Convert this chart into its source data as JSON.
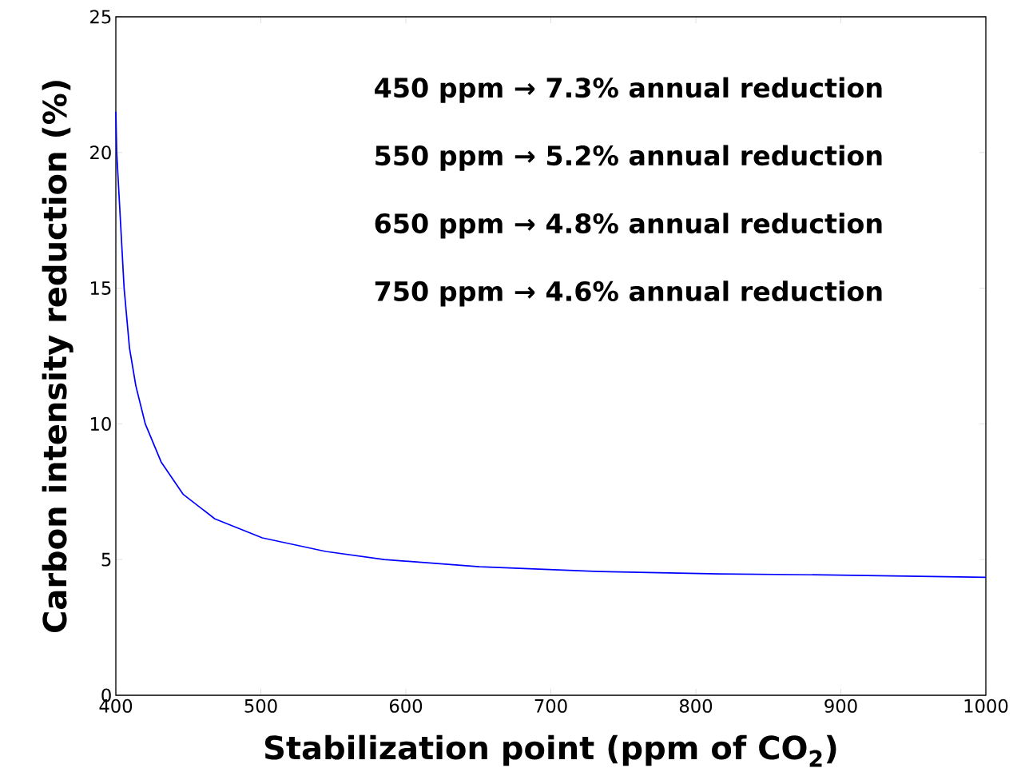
{
  "chart_data": {
    "type": "line",
    "xlabel": "Stabilization point (ppm of CO$_{2}$)",
    "ylabel": "Carbon intensity reduction (%)",
    "annotations": [
      "450 ppm → 7.3% annual reduction",
      "550 ppm → 5.2% annual reduction",
      "650 ppm → 4.8% annual reduction",
      "750 ppm → 4.6% annual reduction"
    ],
    "series": [
      {
        "color": "#0000ff",
        "x": [
          400,
          400.6,
          405.7,
          409.4,
          413.8,
          420.3,
          431.2,
          446.5,
          468.3,
          501,
          544.7,
          585,
          650.7,
          733,
          816,
          898.6,
          1000
        ],
        "values": [
          21.5,
          20.0,
          15.0,
          12.8,
          11.4,
          10.0,
          8.6,
          7.4,
          6.5,
          5.8,
          5.3,
          5.0,
          4.74,
          4.56,
          4.47,
          4.43,
          4.35
        ]
      }
    ],
    "xlim": [
      400,
      1000
    ],
    "ylim": [
      0,
      25
    ],
    "xticks": [
      400,
      500,
      600,
      700,
      800,
      900,
      1000
    ],
    "yticks": [
      0,
      5,
      10,
      15,
      20,
      25
    ],
    "grid": false,
    "marker": "none",
    "line_style": "solid"
  }
}
